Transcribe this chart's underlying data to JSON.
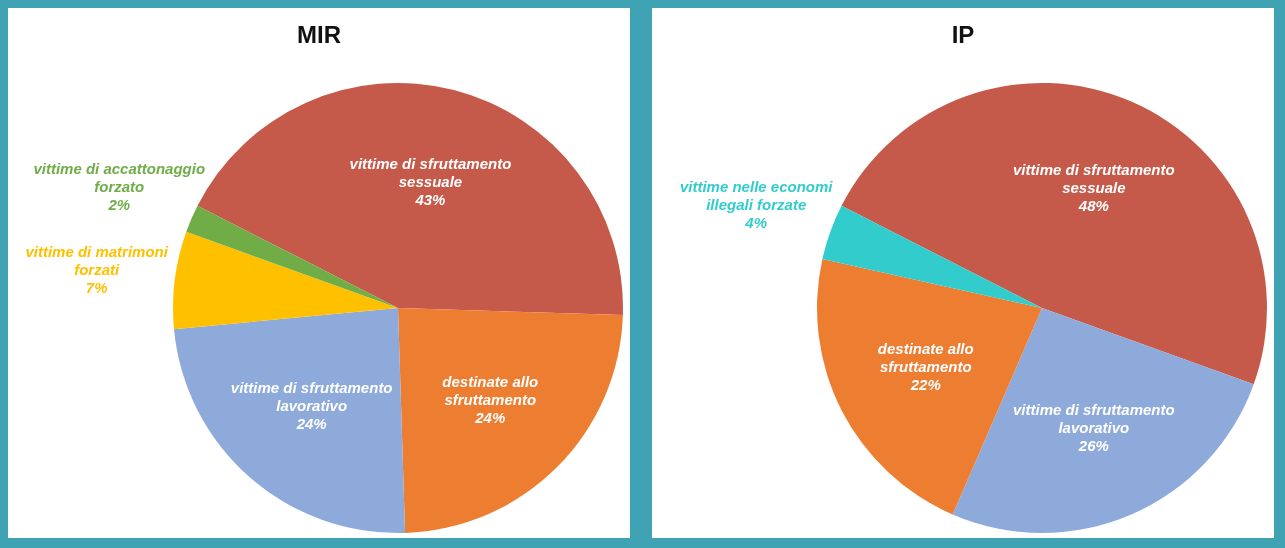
{
  "chart_data": [
    {
      "type": "pie",
      "title": "MIR",
      "categories": [
        "vittime di sfruttamento sessuale",
        "destinate allo sfruttamento",
        "vittime di sfruttamento lavorativo",
        "vittime di matrimoni forzati",
        "vittime di accattonaggio forzato"
      ],
      "values": [
        43,
        24,
        24,
        7,
        2
      ],
      "value_labels": [
        "43%",
        "24%",
        "24%",
        "7%",
        "2%"
      ],
      "colors": [
        "#c55a4a",
        "#ed7d31",
        "#8eaadb",
        "#ffc000",
        "#70ad47"
      ],
      "legend": false
    },
    {
      "type": "pie",
      "title": "IP",
      "categories": [
        "vittime di sfruttamento sessuale",
        "vittime di sfruttamento lavorativo",
        "destinate allo sfruttamento",
        "vittime nelle economi illegali forzate"
      ],
      "values": [
        48,
        26,
        22,
        4
      ],
      "value_labels": [
        "48%",
        "26%",
        "22%",
        "4%"
      ],
      "colors": [
        "#c55a4a",
        "#8eaadb",
        "#ed7d31",
        "#33cccc"
      ],
      "legend": false
    }
  ]
}
